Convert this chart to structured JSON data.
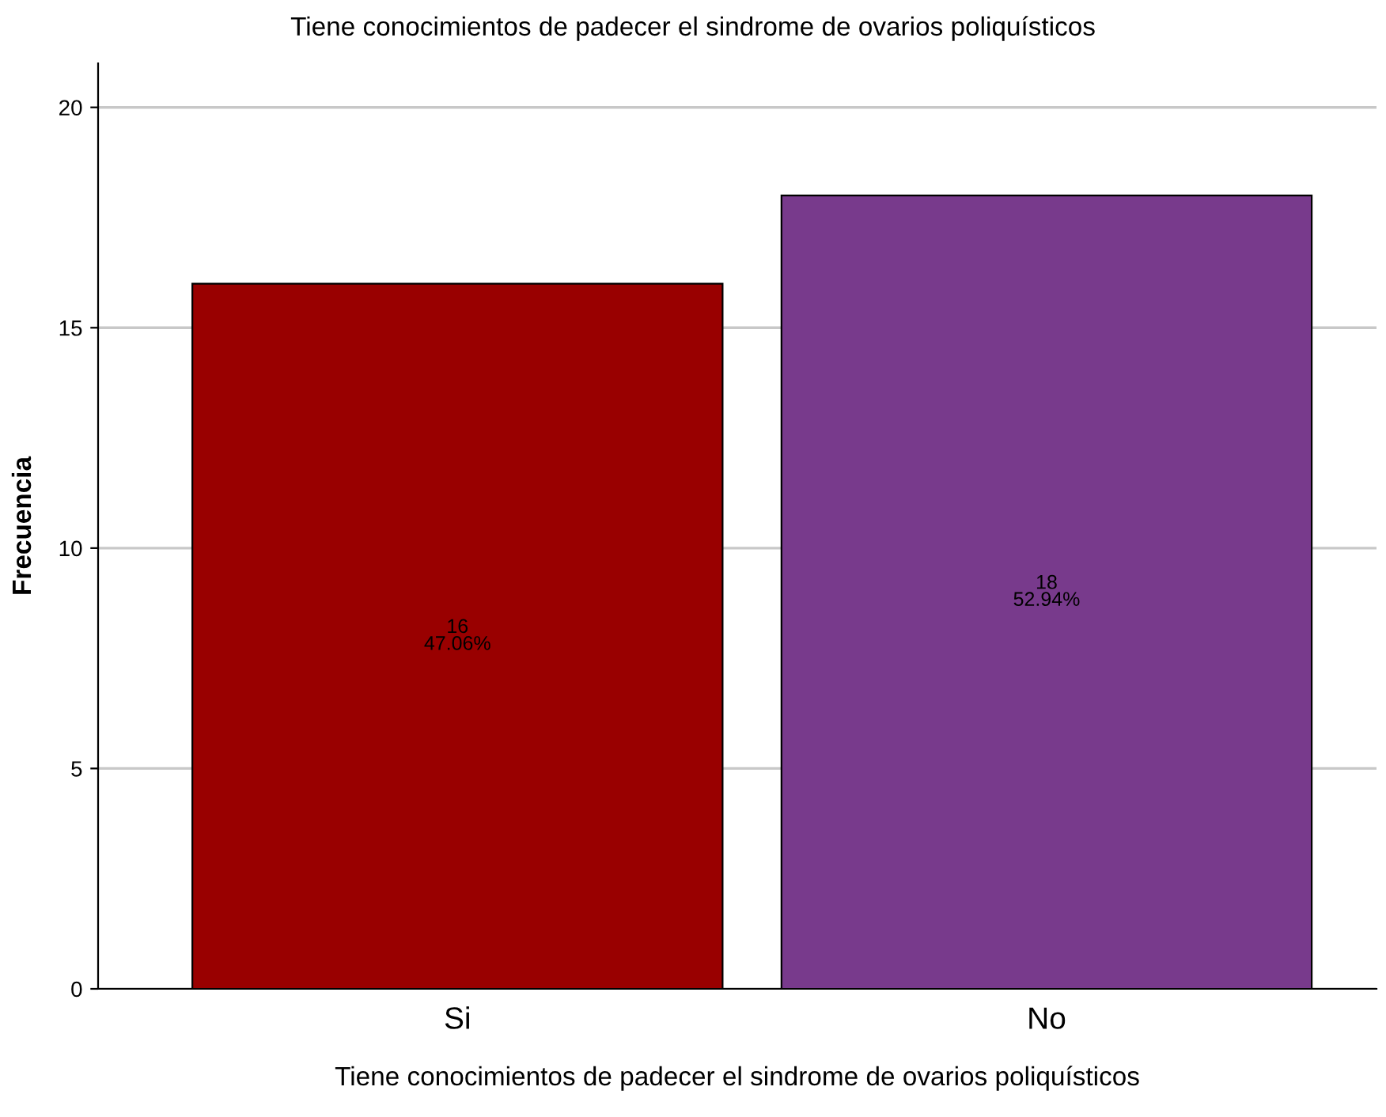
{
  "chart_data": {
    "type": "bar",
    "title": "Tiene conocimientos de padecer el sindrome de ovarios poliquísticos",
    "xlabel": "Tiene conocimientos de padecer el sindrome de ovarios poliquísticos",
    "ylabel": "Frecuencia",
    "categories": [
      "Si",
      "No"
    ],
    "values": [
      16,
      18
    ],
    "colors": [
      "#990000",
      "#783a8c"
    ],
    "value_labels": [
      "16\n47.06%",
      "18\n52.94%"
    ],
    "ylim": [
      0,
      21
    ],
    "yticks": [
      0,
      5,
      10,
      15,
      20
    ],
    "grid": "y",
    "legend": false
  }
}
